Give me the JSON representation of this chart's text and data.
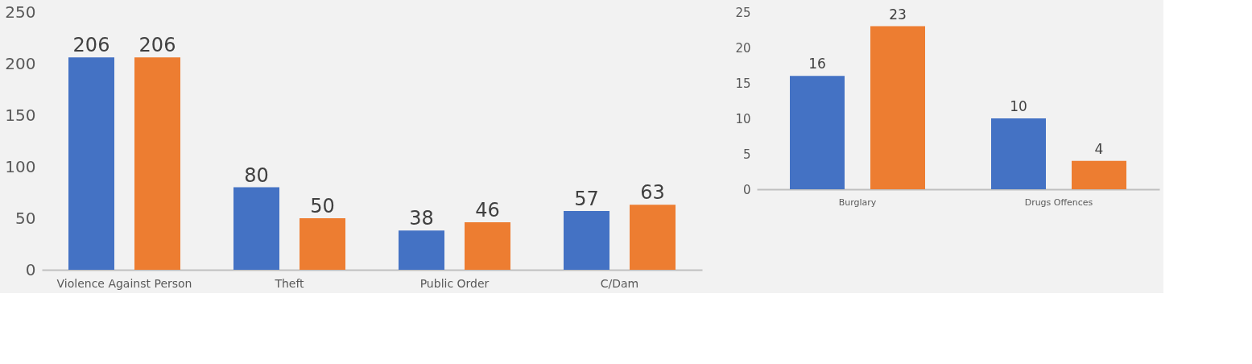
{
  "chart_data": [
    {
      "type": "bar",
      "categories": [
        "Violence Against Person",
        "Theft",
        "Public Order",
        "C/Dam"
      ],
      "series": [
        {
          "color": "#4472c4",
          "values": [
            206,
            80,
            38,
            57
          ]
        },
        {
          "color": "#ed7d31",
          "values": [
            206,
            50,
            46,
            63
          ]
        }
      ],
      "ylim": [
        0,
        250
      ],
      "yticks": [
        0,
        50,
        100,
        150,
        200,
        250
      ],
      "grid": false,
      "legend": false,
      "data_labels": true
    },
    {
      "type": "bar",
      "categories": [
        "Burglary",
        "Drugs Offences"
      ],
      "series": [
        {
          "color": "#4472c4",
          "values": [
            16,
            10
          ]
        },
        {
          "color": "#ed7d31",
          "values": [
            23,
            4
          ]
        }
      ],
      "ylim": [
        0,
        25
      ],
      "yticks": [
        0,
        5,
        10,
        15,
        20,
        25
      ],
      "grid": false,
      "legend": false,
      "data_labels": true
    }
  ]
}
